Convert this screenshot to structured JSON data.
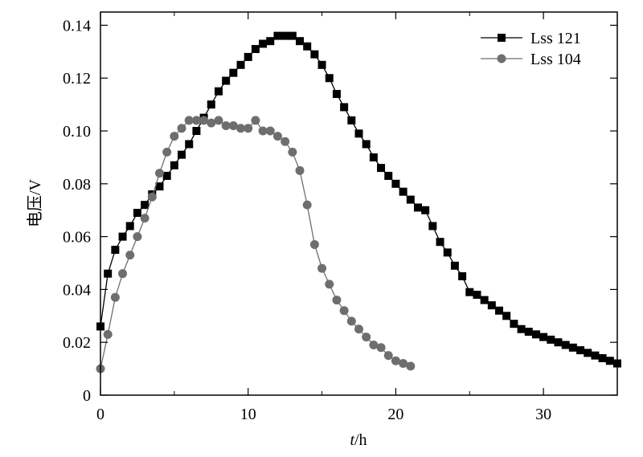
{
  "chart_data": {
    "type": "line",
    "title": "",
    "xlabel_italic": "t",
    "xlabel_rest": "/h",
    "ylabel": "电压/V",
    "xlim": [
      0,
      35
    ],
    "ylim": [
      0,
      0.145
    ],
    "xticks": [
      0,
      10,
      20,
      30
    ],
    "yticks": [
      0,
      0.02,
      0.04,
      0.06,
      0.08,
      0.1,
      0.12,
      0.14
    ],
    "ytick_labels": [
      "0",
      "0.02",
      "0.04",
      "0.06",
      "0.08",
      "0.10",
      "0.12",
      "0.14"
    ],
    "grid": false,
    "legend_position": "top-right",
    "series": [
      {
        "name": "Lss 121",
        "marker": "square",
        "color": "#000000",
        "x": [
          0,
          0.5,
          1,
          1.5,
          2,
          2.5,
          3,
          3.5,
          4,
          4.5,
          5,
          5.5,
          6,
          6.5,
          7,
          7.5,
          8,
          8.5,
          9,
          9.5,
          10,
          10.5,
          11,
          11.5,
          12,
          12.5,
          13,
          13.5,
          14,
          14.5,
          15,
          15.5,
          16,
          16.5,
          17,
          17.5,
          18,
          18.5,
          19,
          19.5,
          20,
          20.5,
          21,
          21.5,
          22,
          22.5,
          23,
          23.5,
          24,
          24.5,
          25,
          25.5,
          26,
          26.5,
          27,
          27.5,
          28,
          28.5,
          29,
          29.5,
          30,
          30.5,
          31,
          31.5,
          32,
          32.5,
          33,
          33.5,
          34,
          34.5,
          35
        ],
        "y": [
          0.026,
          0.046,
          0.055,
          0.06,
          0.064,
          0.069,
          0.072,
          0.076,
          0.079,
          0.083,
          0.087,
          0.091,
          0.095,
          0.1,
          0.105,
          0.11,
          0.115,
          0.119,
          0.122,
          0.125,
          0.128,
          0.131,
          0.133,
          0.134,
          0.136,
          0.136,
          0.136,
          0.134,
          0.132,
          0.129,
          0.125,
          0.12,
          0.114,
          0.109,
          0.104,
          0.099,
          0.095,
          0.09,
          0.086,
          0.083,
          0.08,
          0.077,
          0.074,
          0.071,
          0.07,
          0.064,
          0.058,
          0.054,
          0.049,
          0.045,
          0.039,
          0.038,
          0.036,
          0.034,
          0.032,
          0.03,
          0.027,
          0.025,
          0.024,
          0.023,
          0.022,
          0.021,
          0.02,
          0.019,
          0.018,
          0.017,
          0.016,
          0.015,
          0.014,
          0.013,
          0.012
        ]
      },
      {
        "name": "Lss 104",
        "marker": "circle",
        "color": "#6e6e6e",
        "x": [
          0,
          0.5,
          1,
          1.5,
          2,
          2.5,
          3,
          3.5,
          4,
          4.5,
          5,
          5.5,
          6,
          6.5,
          7,
          7.5,
          8,
          8.5,
          9,
          9.5,
          10,
          10.5,
          11,
          11.5,
          12,
          12.5,
          13,
          13.5,
          14,
          14.5,
          15,
          15.5,
          16,
          16.5,
          17,
          17.5,
          18,
          18.5,
          19,
          19.5,
          20,
          20.5,
          21
        ],
        "y": [
          0.01,
          0.023,
          0.037,
          0.046,
          0.053,
          0.06,
          0.067,
          0.075,
          0.084,
          0.092,
          0.098,
          0.101,
          0.104,
          0.104,
          0.104,
          0.103,
          0.104,
          0.102,
          0.102,
          0.101,
          0.101,
          0.104,
          0.1,
          0.1,
          0.098,
          0.096,
          0.092,
          0.085,
          0.072,
          0.057,
          0.048,
          0.042,
          0.036,
          0.032,
          0.028,
          0.025,
          0.022,
          0.019,
          0.018,
          0.015,
          0.013,
          0.012,
          0.011
        ]
      }
    ]
  }
}
